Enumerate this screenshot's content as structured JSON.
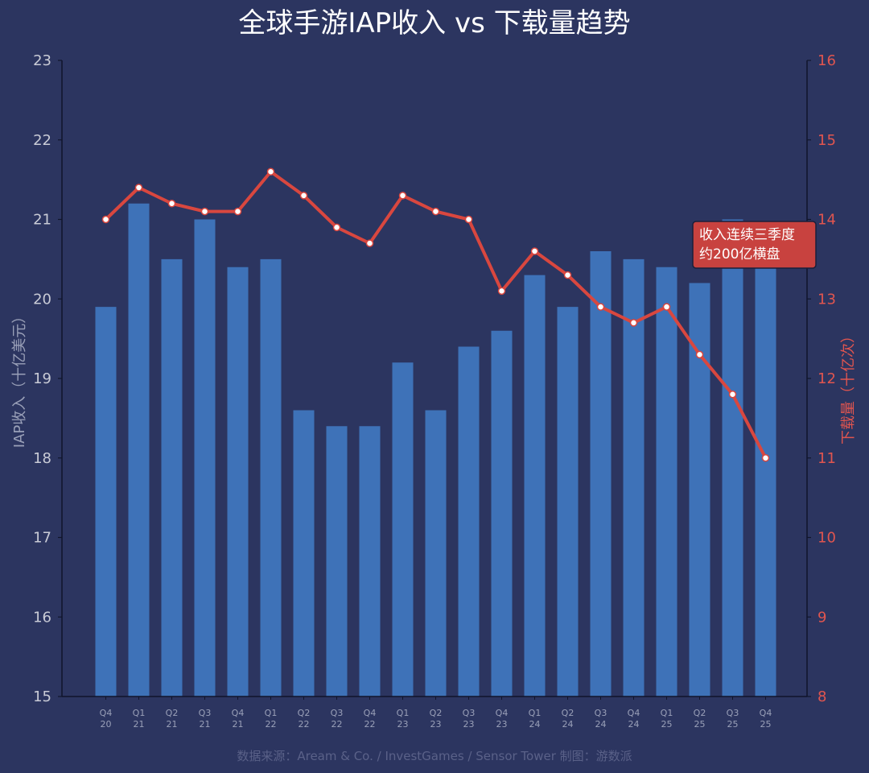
{
  "chart_data": {
    "type": "bar",
    "title": "全球手游IAP收入 vs 下载量趋势",
    "ylabel": "IAP收入（十亿美元）",
    "ylabel_right": "下载量（十亿次）",
    "categories": [
      [
        "Q4",
        "20"
      ],
      [
        "Q1",
        "21"
      ],
      [
        "Q2",
        "21"
      ],
      [
        "Q3",
        "21"
      ],
      [
        "Q4",
        "21"
      ],
      [
        "Q1",
        "22"
      ],
      [
        "Q2",
        "22"
      ],
      [
        "Q3",
        "22"
      ],
      [
        "Q4",
        "22"
      ],
      [
        "Q1",
        "23"
      ],
      [
        "Q2",
        "23"
      ],
      [
        "Q3",
        "23"
      ],
      [
        "Q4",
        "23"
      ],
      [
        "Q1",
        "24"
      ],
      [
        "Q2",
        "24"
      ],
      [
        "Q3",
        "24"
      ],
      [
        "Q4",
        "24"
      ],
      [
        "Q1",
        "25"
      ],
      [
        "Q2",
        "25"
      ],
      [
        "Q3",
        "25"
      ],
      [
        "Q4",
        "25"
      ]
    ],
    "series": [
      {
        "type": "bar",
        "axis": "left",
        "values": [
          19.9,
          21.2,
          20.5,
          21.0,
          20.4,
          20.5,
          18.6,
          18.4,
          18.4,
          19.2,
          18.6,
          19.4,
          19.6,
          20.3,
          19.9,
          20.6,
          20.5,
          20.4,
          20.2,
          21.0,
          20.5
        ]
      },
      {
        "type": "line",
        "axis": "right",
        "values": [
          14.0,
          14.4,
          14.2,
          14.1,
          14.1,
          14.6,
          14.3,
          13.9,
          13.7,
          14.3,
          14.1,
          14.0,
          13.1,
          13.6,
          13.3,
          12.9,
          12.7,
          12.9,
          12.3,
          11.8,
          11.0
        ]
      }
    ],
    "ylim": [
      15,
      23
    ],
    "ylim_right": [
      8,
      16
    ],
    "yticks": [
      15,
      16,
      17,
      18,
      19,
      20,
      21,
      22,
      23
    ],
    "yticks_right": [
      8,
      9,
      10,
      11,
      12,
      13,
      14,
      15,
      16
    ],
    "annotation": [
      "收入连续三季度",
      "约200亿横盘"
    ],
    "source": "数据来源：Aream & Co. / InvestGames / Sensor Tower    制图：游数派",
    "grid": false,
    "colors": {
      "background": "#2c3560",
      "bar": "#3e72b8",
      "line": "#d9473f",
      "marker_fill": "#ffffff",
      "annotation_bg": "#c8423f"
    }
  }
}
